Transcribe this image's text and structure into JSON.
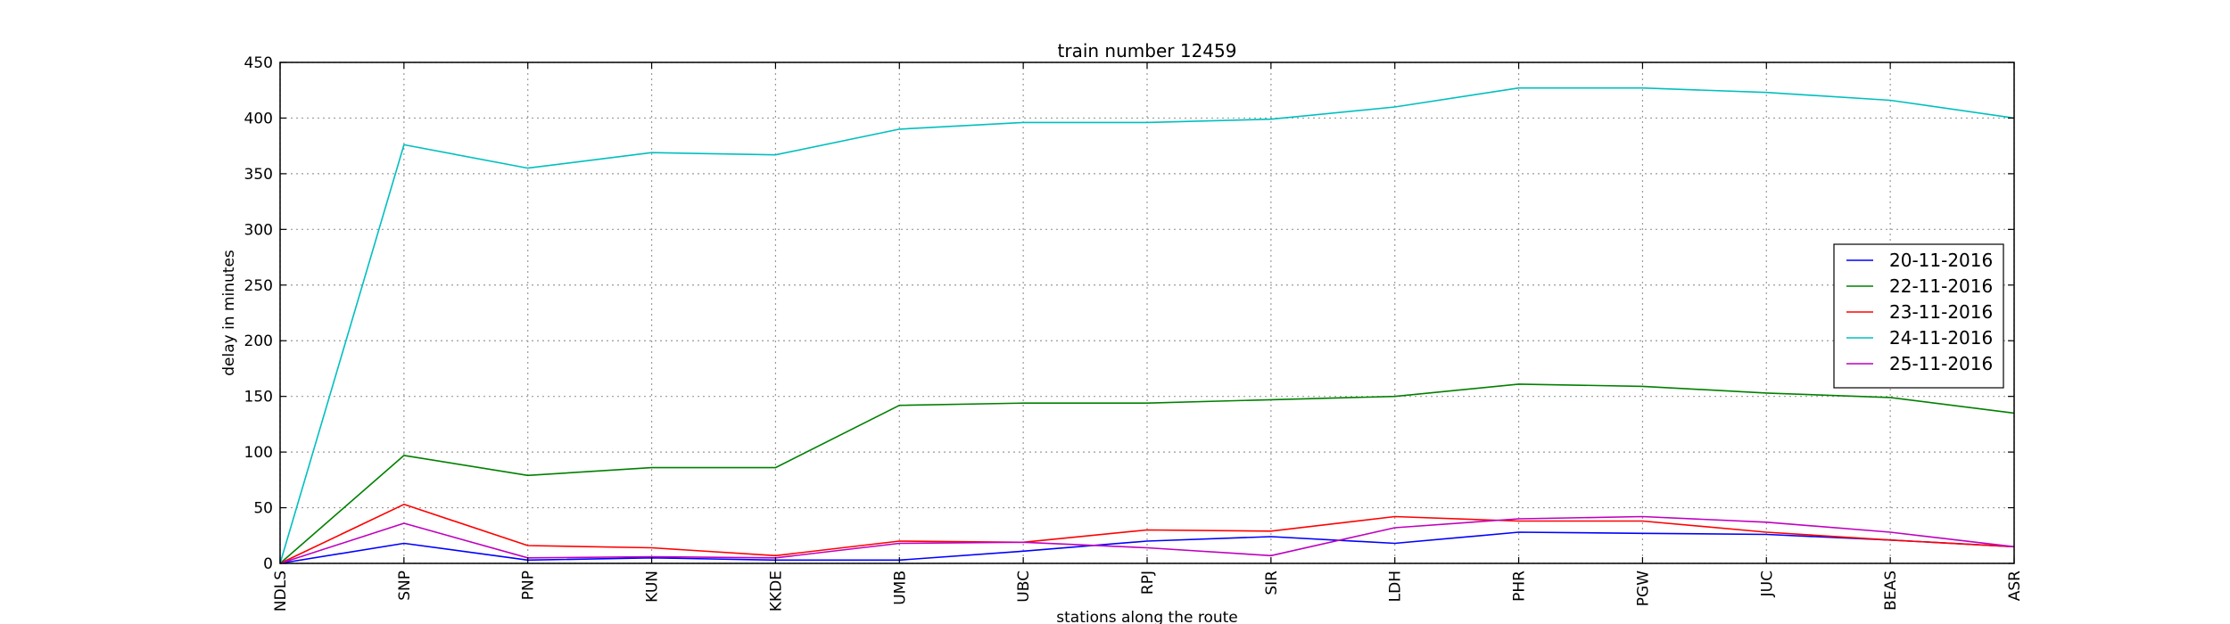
{
  "chart_data": {
    "type": "line",
    "title": "train number 12459",
    "xlabel": "stations along the route",
    "ylabel": "delay in minutes",
    "categories": [
      "NDLS",
      "SNP",
      "PNP",
      "KUN",
      "KKDE",
      "UMB",
      "UBC",
      "RPJ",
      "SIR",
      "LDH",
      "PHR",
      "PGW",
      "JUC",
      "BEAS",
      "ASR"
    ],
    "ylim": [
      0,
      450
    ],
    "yticks": [
      0,
      50,
      100,
      150,
      200,
      250,
      300,
      350,
      400,
      450
    ],
    "grid": true,
    "legend_position": "center-right",
    "series": [
      {
        "name": "20-11-2016",
        "color": "#0000ff",
        "values": [
          0,
          18,
          3,
          5,
          3,
          3,
          11,
          20,
          24,
          18,
          28,
          27,
          26,
          21,
          15
        ]
      },
      {
        "name": "22-11-2016",
        "color": "#008000",
        "values": [
          0,
          97,
          79,
          86,
          86,
          142,
          144,
          144,
          147,
          150,
          161,
          159,
          153,
          149,
          135
        ]
      },
      {
        "name": "23-11-2016",
        "color": "#ff0000",
        "values": [
          0,
          53,
          16,
          14,
          7,
          20,
          19,
          30,
          29,
          42,
          38,
          38,
          28,
          21,
          15
        ]
      },
      {
        "name": "24-11-2016",
        "color": "#00bfbf",
        "values": [
          0,
          376,
          355,
          369,
          367,
          390,
          396,
          396,
          399,
          410,
          427,
          427,
          423,
          416,
          400
        ]
      },
      {
        "name": "25-11-2016",
        "color": "#bf00bf",
        "values": [
          0,
          36,
          5,
          6,
          5,
          18,
          19,
          14,
          7,
          32,
          40,
          42,
          37,
          28,
          15
        ]
      }
    ]
  }
}
